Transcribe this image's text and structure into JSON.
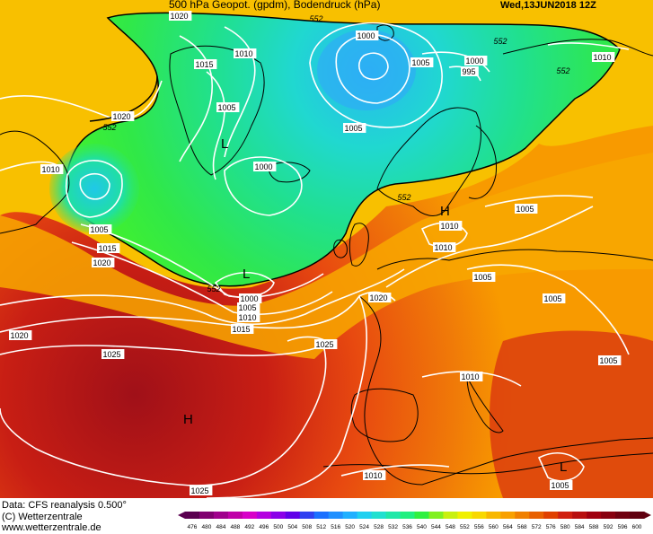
{
  "header": {
    "title": "500 hPa Geopot. (gpdm), Bodendruck (hPa)",
    "valid_time": "Wed,13JUN2018 12Z"
  },
  "footer": {
    "data_source": "Data: CFS reanalysis 0.500°",
    "copyright": "(C) Wetterzentrale",
    "website": "www.wetterzentrale.de"
  },
  "colorbar": {
    "ticks": [
      476,
      480,
      484,
      488,
      492,
      496,
      500,
      504,
      508,
      512,
      516,
      520,
      524,
      528,
      532,
      536,
      540,
      544,
      548,
      552,
      556,
      560,
      564,
      568,
      572,
      576,
      580,
      584,
      588,
      592,
      596,
      600
    ],
    "colors": [
      "#5a0050",
      "#800070",
      "#a0008c",
      "#c000a8",
      "#d800c8",
      "#b400e0",
      "#8a00e8",
      "#6000e8",
      "#3040f0",
      "#1a70ff",
      "#2090ff",
      "#20b0ff",
      "#20d0f0",
      "#20e0d0",
      "#20e8a8",
      "#20f080",
      "#30f040",
      "#80f020",
      "#c8f010",
      "#f0f000",
      "#f8d800",
      "#f8b800",
      "#f8a000",
      "#f08000",
      "#e86000",
      "#e04000",
      "#d02010",
      "#b81010",
      "#a00010",
      "#880010",
      "#700010",
      "#600010"
    ]
  },
  "map": {
    "geopotential_line_label": "552",
    "isobar_labels": [
      {
        "text": "1020",
        "id": "a"
      },
      {
        "text": "552",
        "id": "b"
      },
      {
        "text": "1000",
        "id": "c"
      },
      {
        "text": "552",
        "id": "d"
      },
      {
        "text": "1010",
        "id": "e"
      },
      {
        "text": "1015",
        "id": "f"
      },
      {
        "text": "1005",
        "id": "g"
      },
      {
        "text": "1000",
        "id": "h"
      },
      {
        "text": "995",
        "id": "i"
      },
      {
        "text": "552",
        "id": "j"
      },
      {
        "text": "1010",
        "id": "k"
      },
      {
        "text": "1005",
        "id": "l"
      },
      {
        "text": "1020",
        "id": "m"
      },
      {
        "text": "552",
        "id": "n"
      },
      {
        "text": "1005",
        "id": "o"
      },
      {
        "text": "1010",
        "id": "p"
      },
      {
        "text": "1000",
        "id": "q"
      },
      {
        "text": "1005",
        "id": "r"
      },
      {
        "text": "1015",
        "id": "s"
      },
      {
        "text": "1020",
        "id": "t"
      },
      {
        "text": "552",
        "id": "u"
      },
      {
        "text": "1000",
        "id": "v"
      },
      {
        "text": "1005",
        "id": "w"
      },
      {
        "text": "1010",
        "id": "x"
      },
      {
        "text": "1015",
        "id": "y"
      },
      {
        "text": "1020",
        "id": "z"
      },
      {
        "text": "1025",
        "id": "aa"
      },
      {
        "text": "1025",
        "id": "ab"
      },
      {
        "text": "552",
        "id": "ac"
      },
      {
        "text": "1010",
        "id": "ad"
      },
      {
        "text": "1010",
        "id": "ae"
      },
      {
        "text": "1005",
        "id": "af"
      },
      {
        "text": "1005",
        "id": "ag"
      },
      {
        "text": "1005",
        "id": "ah"
      },
      {
        "text": "1005",
        "id": "ai"
      },
      {
        "text": "1010",
        "id": "aj"
      },
      {
        "text": "1010",
        "id": "ak"
      },
      {
        "text": "1025",
        "id": "al"
      },
      {
        "text": "1005",
        "id": "am"
      },
      {
        "text": "1020",
        "id": "an"
      }
    ],
    "pressure_centers": [
      {
        "id": "L1",
        "letter": "L"
      },
      {
        "id": "L2",
        "letter": "L"
      },
      {
        "id": "H1",
        "letter": "H"
      },
      {
        "id": "H2",
        "letter": "H"
      },
      {
        "id": "L3",
        "letter": "L"
      }
    ]
  }
}
